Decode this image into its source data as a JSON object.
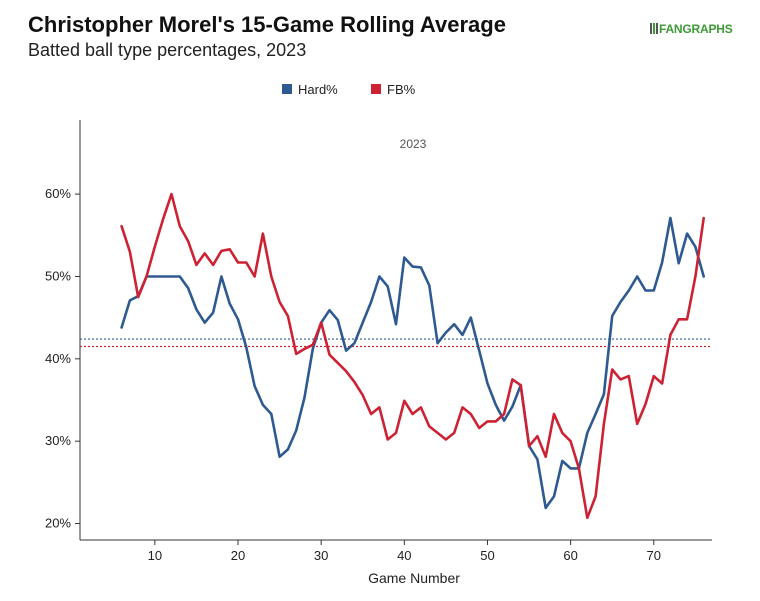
{
  "header": {
    "title": "Christopher Morel's 15-Game Rolling Average",
    "subtitle": "Batted ball type percentages, 2023",
    "logo_text": "FANGRAPHS"
  },
  "colors": {
    "hard": "#2e5a91",
    "fb": "#cc2233",
    "logo": "#3d9b35"
  },
  "chart_data": {
    "type": "line",
    "title": "Christopher Morel's 15-Game Rolling Average",
    "subtitle": "Batted ball type percentages, 2023",
    "panel_label": "2023",
    "xlabel": "Game Number",
    "ylabel": "",
    "xlim": [
      1,
      77
    ],
    "ylim": [
      18,
      69
    ],
    "xticks": [
      10,
      20,
      30,
      40,
      50,
      60,
      70
    ],
    "yticks": [
      20,
      30,
      40,
      50,
      60
    ],
    "ytick_labels": [
      "20%",
      "30%",
      "40%",
      "50%",
      "60%"
    ],
    "legend_position": "top-center",
    "grid": false,
    "x": [
      6,
      7,
      8,
      9,
      10,
      11,
      12,
      13,
      14,
      15,
      16,
      17,
      18,
      19,
      20,
      21,
      22,
      23,
      24,
      25,
      26,
      27,
      28,
      29,
      30,
      31,
      32,
      33,
      34,
      35,
      36,
      37,
      38,
      39,
      40,
      41,
      42,
      43,
      44,
      45,
      46,
      47,
      48,
      49,
      50,
      51,
      52,
      53,
      54,
      55,
      56,
      57,
      58,
      59,
      60,
      61,
      62,
      63,
      64,
      65,
      66,
      67,
      68,
      69,
      70,
      71,
      72,
      73,
      74,
      75,
      76
    ],
    "series": [
      {
        "name": "Hard%",
        "color": "#2e5a91",
        "average": 42.4,
        "values": [
          43.8,
          47.1,
          47.6,
          50.0,
          50.0,
          50.0,
          50.0,
          50.0,
          48.6,
          46.0,
          44.4,
          45.6,
          50.0,
          46.7,
          44.8,
          41.4,
          36.7,
          34.4,
          33.3,
          28.1,
          29.0,
          31.3,
          35.3,
          41.2,
          44.4,
          45.9,
          44.7,
          41.0,
          41.9,
          44.4,
          46.9,
          50.0,
          48.8,
          44.2,
          52.3,
          51.2,
          51.1,
          48.9,
          41.9,
          43.2,
          44.2,
          42.9,
          45.0,
          41.0,
          37.0,
          34.4,
          32.5,
          34.2,
          36.8,
          29.4,
          27.8,
          21.9,
          23.3,
          27.6,
          26.7,
          26.7,
          31.0,
          33.3,
          35.7,
          45.2,
          46.9,
          48.3,
          50.0,
          48.3,
          48.3,
          51.7,
          57.1,
          51.6,
          55.2,
          53.6,
          50.0
        ]
      },
      {
        "name": "FB%",
        "color": "#cc2233",
        "average": 41.5,
        "values": [
          56.1,
          53.0,
          47.5,
          50.0,
          53.6,
          57.0,
          60.0,
          56.1,
          54.3,
          51.4,
          52.8,
          51.4,
          53.1,
          53.3,
          51.7,
          51.7,
          50.0,
          55.2,
          50.0,
          46.9,
          45.2,
          40.6,
          41.2,
          41.7,
          44.4,
          40.5,
          39.5,
          38.5,
          37.2,
          35.6,
          33.3,
          34.1,
          30.2,
          31.0,
          34.9,
          33.3,
          34.1,
          31.8,
          31.0,
          30.2,
          31.0,
          34.1,
          33.3,
          31.6,
          32.4,
          32.4,
          33.3,
          37.5,
          36.8,
          29.4,
          30.6,
          28.1,
          33.3,
          31.0,
          30.0,
          26.7,
          20.7,
          23.3,
          32.1,
          38.7,
          37.5,
          37.9,
          32.1,
          34.5,
          37.9,
          37.0,
          42.9,
          44.8,
          44.8,
          50.0,
          57.1
        ]
      }
    ]
  }
}
